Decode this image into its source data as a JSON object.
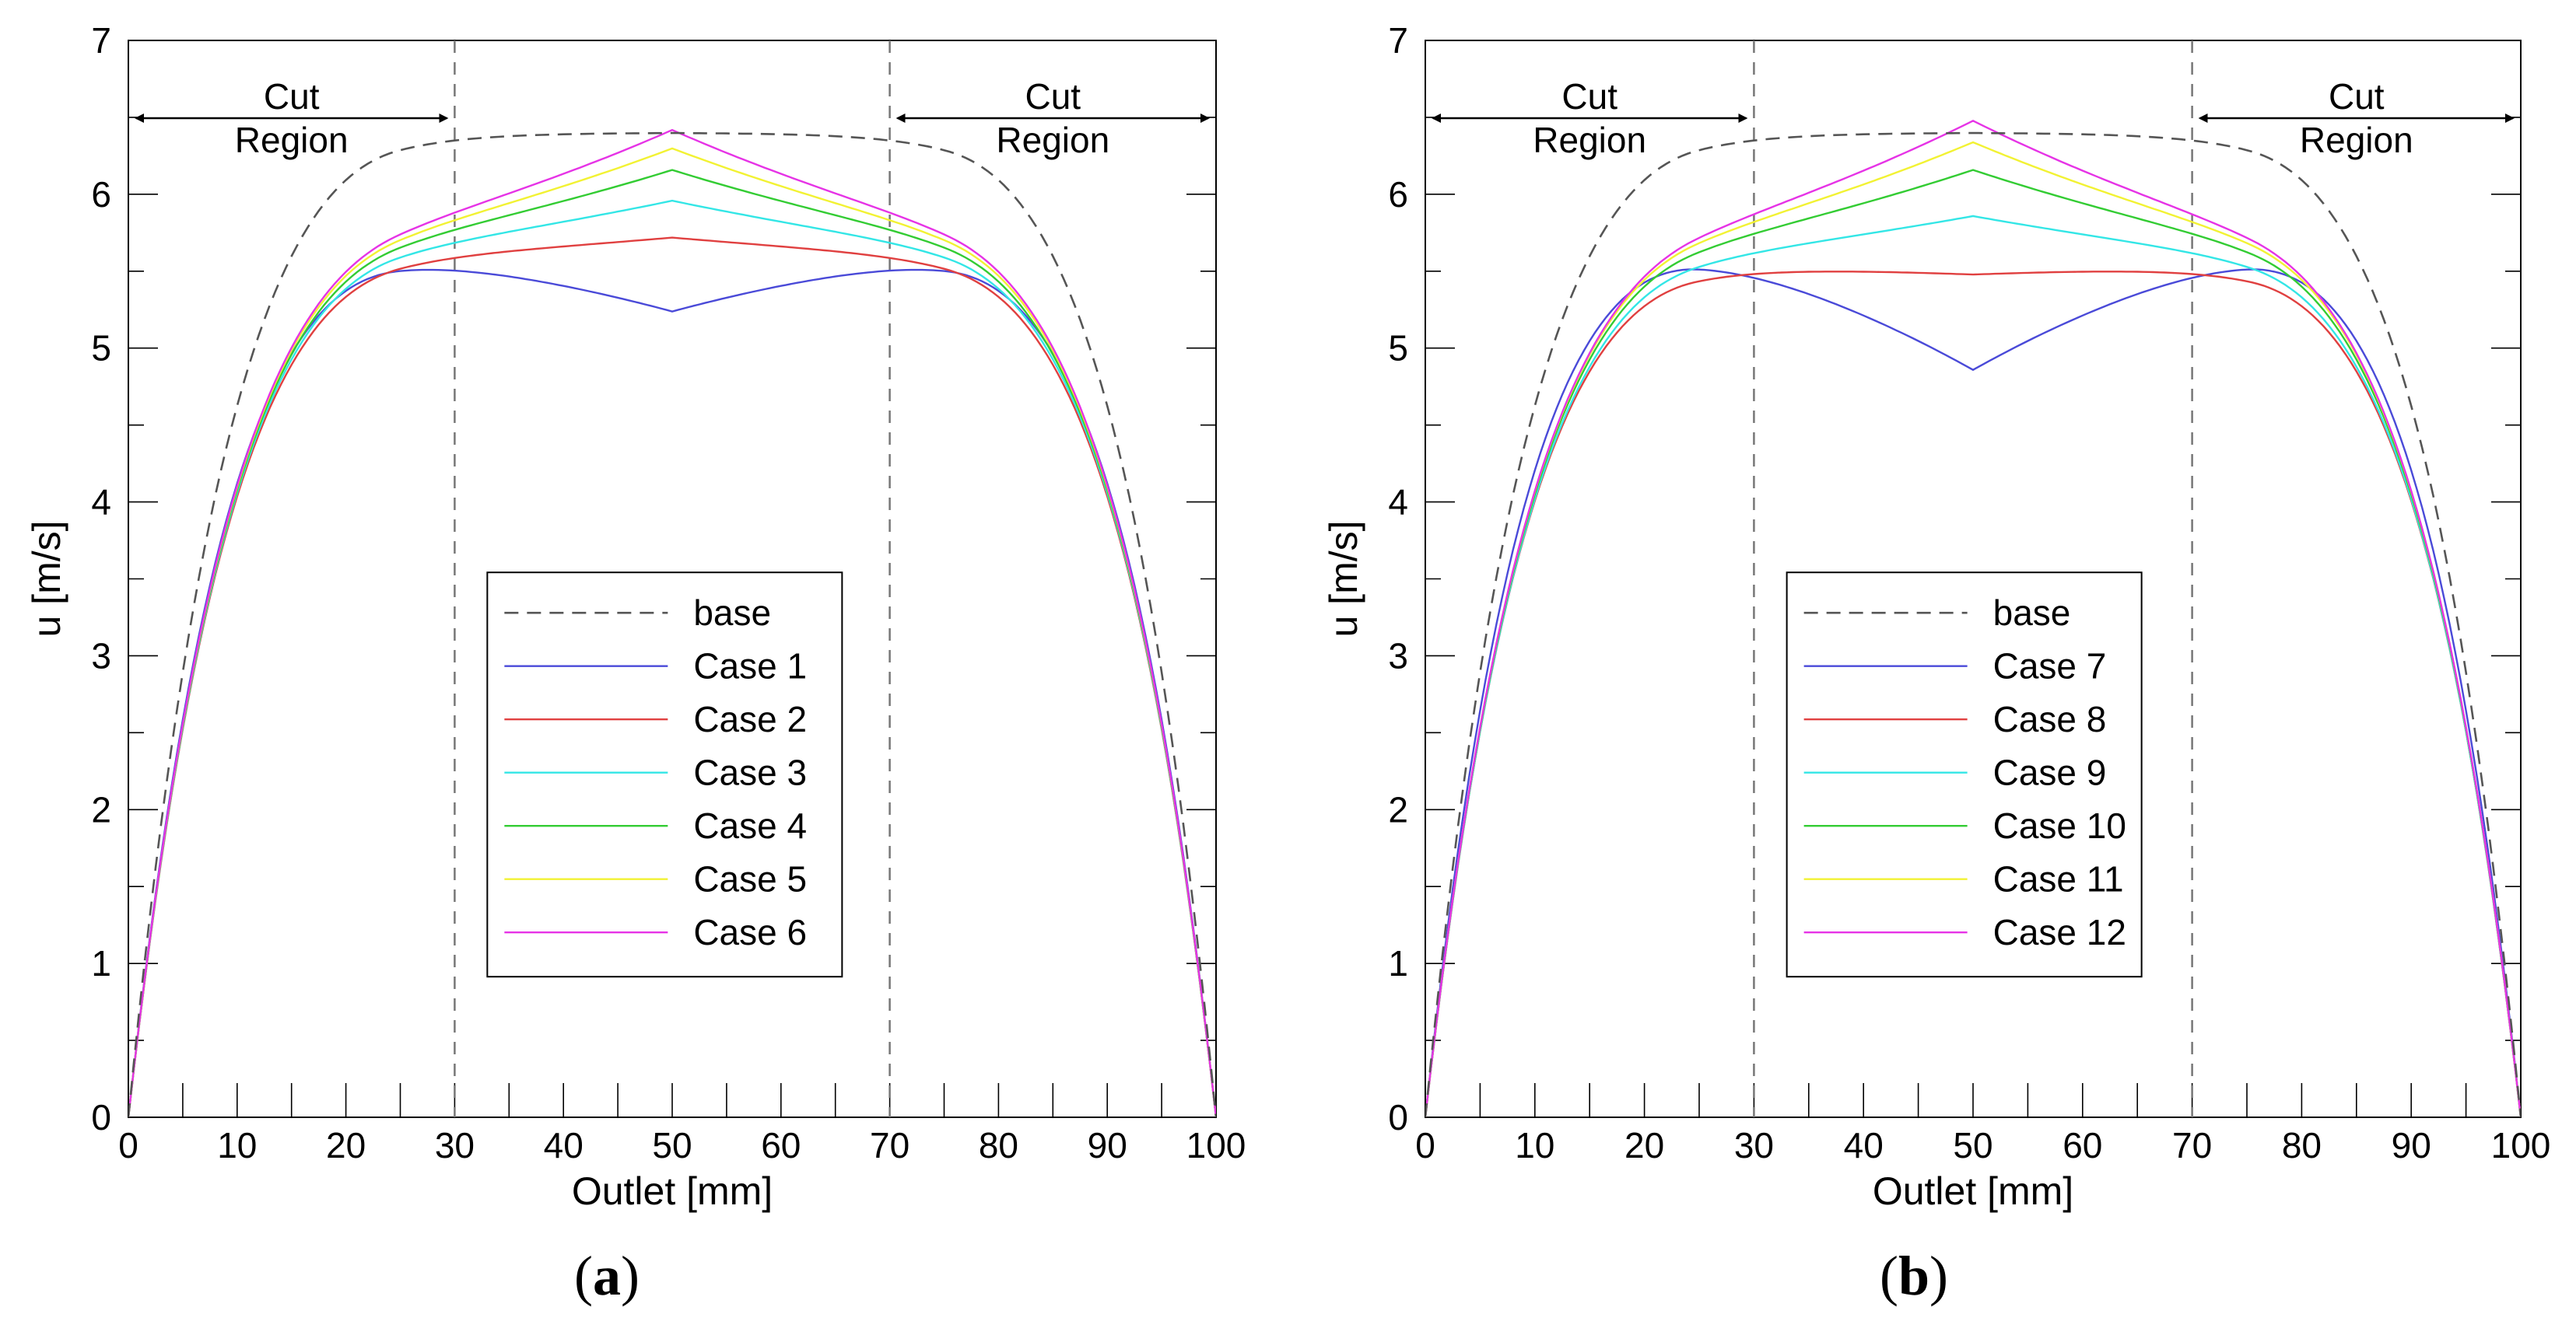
{
  "chart_data": [
    {
      "type": "line",
      "panel_label": "a",
      "xlabel": "Outlet [mm]",
      "ylabel": "u [m/s]",
      "xlim": [
        0,
        100
      ],
      "ylim": [
        0,
        7
      ],
      "xticks": [
        0,
        10,
        20,
        30,
        40,
        50,
        60,
        70,
        80,
        90,
        100
      ],
      "yticks": [
        0,
        1,
        2,
        3,
        4,
        5,
        6,
        7
      ],
      "cut_lines": [
        30,
        70
      ],
      "annotations": [
        {
          "line1": "Cut",
          "line2": "Region",
          "x_from": 0,
          "x_to": 30
        },
        {
          "line1": "Cut",
          "line2": "Region",
          "x_from": 70,
          "x_to": 100
        }
      ],
      "legend_position": "center-inside",
      "series": [
        {
          "name": "base",
          "color": "#555555",
          "dashed": true,
          "side": 6.4,
          "center": 6.4,
          "edge": 0.12
        },
        {
          "name": "Case 1",
          "color": "#4a4ad8",
          "dashed": false,
          "side": 5.72,
          "center": 5.24,
          "edge": 0.35
        },
        {
          "name": "Case 2",
          "color": "#e04040",
          "dashed": false,
          "side": 5.58,
          "center": 5.72,
          "edge": 0.3
        },
        {
          "name": "Case 3",
          "color": "#33e6e6",
          "dashed": false,
          "side": 5.6,
          "center": 5.96,
          "edge": 0.25
        },
        {
          "name": "Case 4",
          "color": "#33cc33",
          "dashed": false,
          "side": 5.62,
          "center": 6.16,
          "edge": 0.2
        },
        {
          "name": "Case 5",
          "color": "#f2f233",
          "dashed": false,
          "side": 5.64,
          "center": 6.3,
          "edge": 0.16
        },
        {
          "name": "Case 6",
          "color": "#e633e6",
          "dashed": false,
          "side": 5.65,
          "center": 6.42,
          "edge": 0.12
        }
      ]
    },
    {
      "type": "line",
      "panel_label": "b",
      "xlabel": "Outlet [mm]",
      "ylabel": "u [m/s]",
      "xlim": [
        0,
        100
      ],
      "ylim": [
        0,
        7
      ],
      "xticks": [
        0,
        10,
        20,
        30,
        40,
        50,
        60,
        70,
        80,
        90,
        100
      ],
      "yticks": [
        0,
        1,
        2,
        3,
        4,
        5,
        6,
        7
      ],
      "cut_lines": [
        30,
        70
      ],
      "annotations": [
        {
          "line1": "Cut",
          "line2": "Region",
          "x_from": 0,
          "x_to": 30
        },
        {
          "line1": "Cut",
          "line2": "Region",
          "x_from": 70,
          "x_to": 100
        }
      ],
      "legend_position": "center-inside",
      "series": [
        {
          "name": "base",
          "color": "#555555",
          "dashed": true,
          "side": 6.4,
          "center": 6.4,
          "edge": 0.12
        },
        {
          "name": "Case 7",
          "color": "#4a4ad8",
          "dashed": false,
          "side": 5.86,
          "center": 4.86,
          "edge": 0.4
        },
        {
          "name": "Case 8",
          "color": "#e04040",
          "dashed": false,
          "side": 5.55,
          "center": 5.48,
          "edge": 0.32
        },
        {
          "name": "Case 9",
          "color": "#33e6e6",
          "dashed": false,
          "side": 5.55,
          "center": 5.86,
          "edge": 0.25
        },
        {
          "name": "Case 10",
          "color": "#33cc33",
          "dashed": false,
          "side": 5.58,
          "center": 6.16,
          "edge": 0.18
        },
        {
          "name": "Case 11",
          "color": "#f2f233",
          "dashed": false,
          "side": 5.6,
          "center": 6.34,
          "edge": 0.12
        },
        {
          "name": "Case 12",
          "color": "#e633e6",
          "dashed": false,
          "side": 5.6,
          "center": 6.48,
          "edge": 0.06
        }
      ]
    }
  ]
}
